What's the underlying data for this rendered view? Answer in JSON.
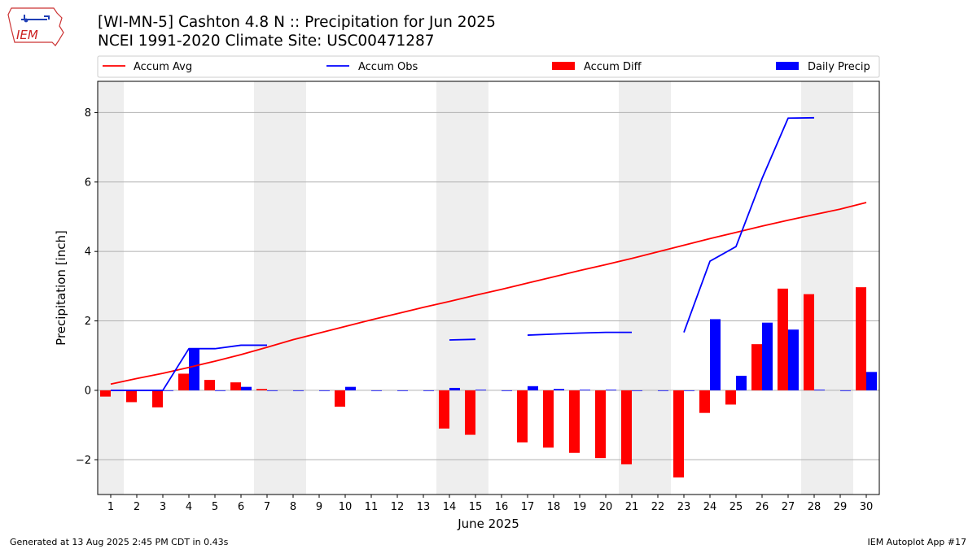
{
  "header": {
    "title_line1": "[WI-MN-5] Cashton 4.8 N :: Precipitation for Jun 2025",
    "title_line2": "NCEI 1991-2020 Climate Site: USC00471287",
    "logo_text": "IEM"
  },
  "footer": {
    "left": "Generated at 13 Aug 2025 2:45 PM CDT in 0.43s",
    "right": "IEM Autoplot App #17"
  },
  "colors": {
    "accum_avg": "#ff0000",
    "accum_obs": "#0000ff",
    "accum_diff": "#ff0000",
    "daily_precip": "#0000ff",
    "weekend_shade": "#eeeeee",
    "grid": "#b0b0b0"
  },
  "chart_data": {
    "type": "bar",
    "title": "[WI-MN-5] Cashton 4.8 N :: Precipitation for Jun 2025",
    "xlabel": "June 2025",
    "ylabel": "Precipitation [inch]",
    "ylim": [
      -3.0,
      8.9
    ],
    "yticks": [
      -2,
      0,
      2,
      4,
      6,
      8
    ],
    "grid": "horizontal",
    "legend_placement": "top (above plot, full width)",
    "categories": [
      "1",
      "2",
      "3",
      "4",
      "5",
      "6",
      "7",
      "8",
      "9",
      "10",
      "11",
      "12",
      "13",
      "14",
      "15",
      "16",
      "17",
      "18",
      "19",
      "20",
      "21",
      "22",
      "23",
      "24",
      "25",
      "26",
      "27",
      "28",
      "29",
      "30"
    ],
    "weekend_days": [
      1,
      7,
      8,
      14,
      15,
      21,
      22,
      28,
      29
    ],
    "series": [
      {
        "name": "Accum Avg",
        "kind": "line",
        "values": [
          0.18,
          0.34,
          0.49,
          0.66,
          0.84,
          1.03,
          1.24,
          1.46,
          1.65,
          1.84,
          2.03,
          2.21,
          2.39,
          2.56,
          2.74,
          2.91,
          3.09,
          3.27,
          3.45,
          3.62,
          3.8,
          3.99,
          4.18,
          4.37,
          4.55,
          4.73,
          4.9,
          5.06,
          5.22,
          5.41
        ]
      },
      {
        "name": "Accum Obs",
        "kind": "line",
        "values": [
          0.0,
          0.0,
          0.0,
          1.2,
          1.2,
          1.3,
          1.3,
          null,
          null,
          null,
          null,
          null,
          null,
          1.45,
          1.47,
          null,
          1.59,
          1.62,
          1.65,
          1.67,
          1.67,
          null,
          1.67,
          3.72,
          4.14,
          6.1,
          7.84,
          7.85,
          null,
          null
        ]
      },
      {
        "name": "Accum Diff",
        "kind": "bar",
        "values": [
          -0.18,
          -0.34,
          -0.49,
          0.48,
          0.3,
          0.23,
          0.04,
          null,
          null,
          -0.47,
          null,
          null,
          null,
          -1.1,
          -1.28,
          null,
          -1.5,
          -1.65,
          -1.8,
          -1.95,
          -2.13,
          null,
          -2.51,
          -0.65,
          -0.41,
          1.33,
          2.93,
          2.77,
          null,
          2.97
        ]
      },
      {
        "name": "Daily Precip",
        "kind": "bar",
        "values": [
          0.0,
          0.0,
          0.0,
          1.2,
          0.0,
          0.1,
          0.0,
          0.0,
          0.0,
          0.1,
          0.0,
          0.0,
          0.0,
          0.07,
          0.02,
          0.0,
          0.12,
          0.04,
          0.02,
          0.02,
          0.0,
          0.0,
          0.0,
          2.05,
          0.42,
          1.95,
          1.75,
          0.02,
          0.0,
          0.53
        ]
      }
    ]
  }
}
